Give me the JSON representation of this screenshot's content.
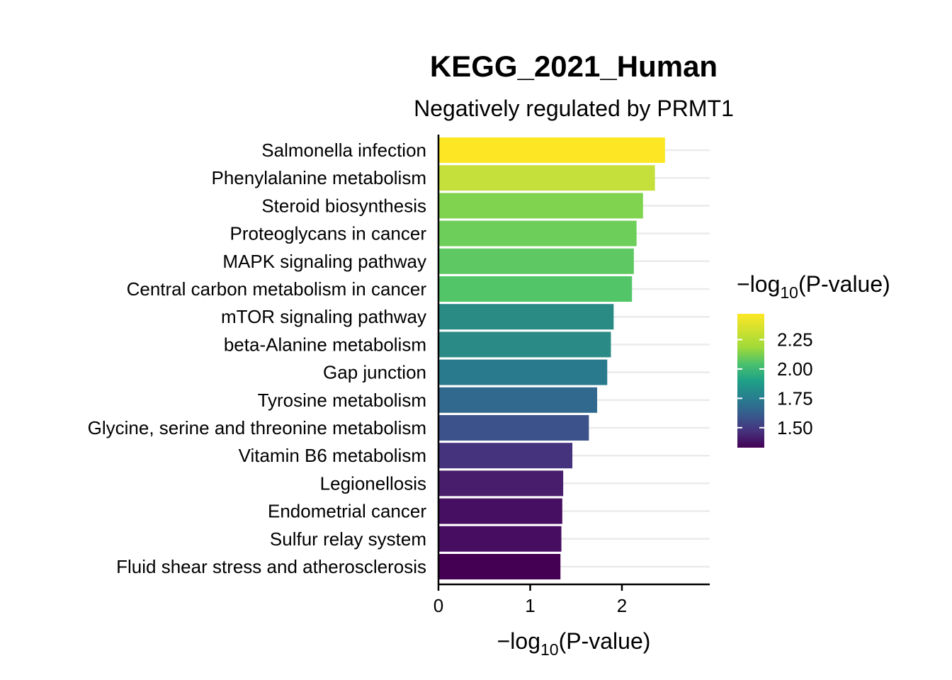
{
  "chart_data": {
    "type": "bar",
    "orientation": "horizontal",
    "title": "KEGG_2021_Human",
    "subtitle": "Negatively regulated by PRMT1",
    "xlabel": "−log10(P-value)",
    "ylabel": "",
    "xlim": [
      0,
      2.95
    ],
    "xticks": [
      0,
      1,
      2
    ],
    "grid": "horizontal major lines per category",
    "categories": [
      "Salmonella infection",
      "Phenylalanine metabolism",
      "Steroid biosynthesis",
      "Proteoglycans in cancer",
      "MAPK signaling pathway",
      "Central carbon metabolism in cancer",
      "mTOR signaling pathway",
      "beta-Alanine metabolism",
      "Gap junction",
      "Tyrosine metabolism",
      "Glycine, serine and threonine metabolism",
      "Vitamin B6 metabolism",
      "Legionellosis",
      "Endometrial cancer",
      "Sulfur relay system",
      "Fluid shear stress and atherosclerosis"
    ],
    "values": [
      2.47,
      2.36,
      2.23,
      2.16,
      2.13,
      2.11,
      1.91,
      1.88,
      1.84,
      1.73,
      1.64,
      1.46,
      1.36,
      1.35,
      1.34,
      1.33
    ],
    "colors": [
      "#fde725",
      "#c5e03a",
      "#7fd34e",
      "#6dce59",
      "#5ec962",
      "#52c569",
      "#2a8b85",
      "#2a8a85",
      "#2a7a8e",
      "#31688e",
      "#3b528b",
      "#46337e",
      "#471d6c",
      "#470f62",
      "#470d60",
      "#440154"
    ],
    "legend": {
      "title": "−log10(P-value)",
      "position": "right",
      "ticks": [
        1.5,
        1.75,
        2.0,
        2.25
      ],
      "tick_labels": [
        "1.50",
        "1.75",
        "2.00",
        "2.25"
      ],
      "range": [
        1.33,
        2.47
      ],
      "colormap": "viridis"
    }
  }
}
